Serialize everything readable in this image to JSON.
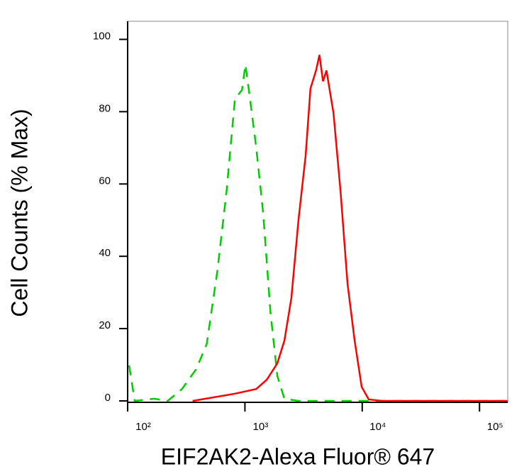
{
  "chart_data": {
    "type": "line",
    "x_label": "EIF2AK2-Alexa Fluor® 647",
    "y_label": "Cell Counts (% Max)",
    "x_scale": "log",
    "xlim": [
      100,
      174000
    ],
    "ylim": [
      0,
      105
    ],
    "xticks": [
      {
        "value": 100,
        "label": "10²"
      },
      {
        "value": 1000,
        "label": "10³"
      },
      {
        "value": 10000,
        "label": "10⁴"
      },
      {
        "value": 100000,
        "label": "10⁵"
      }
    ],
    "yticks": [
      0,
      20,
      40,
      60,
      80,
      100
    ],
    "series": [
      {
        "color": "#00cc00",
        "line_style": "dashed",
        "x": [
          103,
          115,
          168,
          220,
          291,
          384,
          472,
          583,
          697,
          822,
          944,
          1010,
          1086,
          1250,
          1430,
          1650,
          1890,
          2170,
          2860,
          174000
        ],
        "values": [
          9.8,
          0,
          0.6,
          0,
          3.3,
          8.8,
          15.7,
          36,
          58,
          83.5,
          86,
          93,
          85.5,
          70,
          52,
          24.6,
          6.9,
          0.6,
          0,
          0
        ]
      },
      {
        "color": "#ff0000",
        "line_style": "solid",
        "x": [
          358,
          544,
          822,
          1250,
          1540,
          1890,
          2170,
          2490,
          2860,
          3290,
          3620,
          4040,
          4320,
          4630,
          4960,
          5690,
          6530,
          7500,
          8610,
          9890,
          11360,
          14800,
          174000
        ],
        "values": [
          0,
          1,
          2,
          3.3,
          5.9,
          10.4,
          16.7,
          28.5,
          50,
          67.8,
          86.4,
          91.4,
          95.7,
          88.4,
          91.4,
          79.6,
          58,
          32.4,
          16.7,
          3.9,
          0.4,
          0,
          0
        ]
      }
    ]
  }
}
